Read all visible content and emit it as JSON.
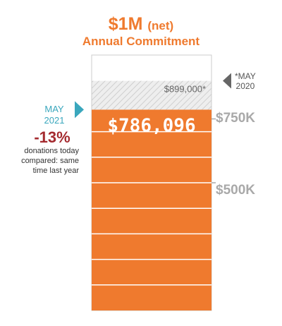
{
  "title": {
    "amount": "$1M",
    "net": "(net)",
    "subtitle": "Annual Commitment"
  },
  "markers": {
    "may2020": {
      "line1": "*MAY",
      "line2": "2020"
    },
    "may2021": {
      "line1": "MAY",
      "line2": "2021"
    }
  },
  "change": {
    "percent": "-13%",
    "caption_line1": "donations today",
    "caption_line2": "compared: same",
    "caption_line3": "time last year"
  },
  "colors": {
    "accent": "#ef7a2e",
    "fill": "#ef7a2e",
    "prior": "#d9d9d9",
    "marker2021": "#3aa7bd",
    "marker2020": "#666666",
    "negative": "#a42a2f",
    "tick": "#a9a9a9"
  },
  "chart_data": {
    "type": "bar",
    "title": "$1M (net) Annual Commitment",
    "goal": 1000000,
    "ylim": [
      0,
      1000000
    ],
    "current": {
      "value": 786096,
      "label": "$786,096",
      "period": "MAY 2021"
    },
    "prior": {
      "value": 899000,
      "label": "$899,000*",
      "period": "*MAY 2020"
    },
    "ticks": [
      {
        "value": 750000,
        "label": "$750K"
      },
      {
        "value": 500000,
        "label": "$500K"
      }
    ],
    "segment_step": 100000,
    "change_percent": -13
  }
}
